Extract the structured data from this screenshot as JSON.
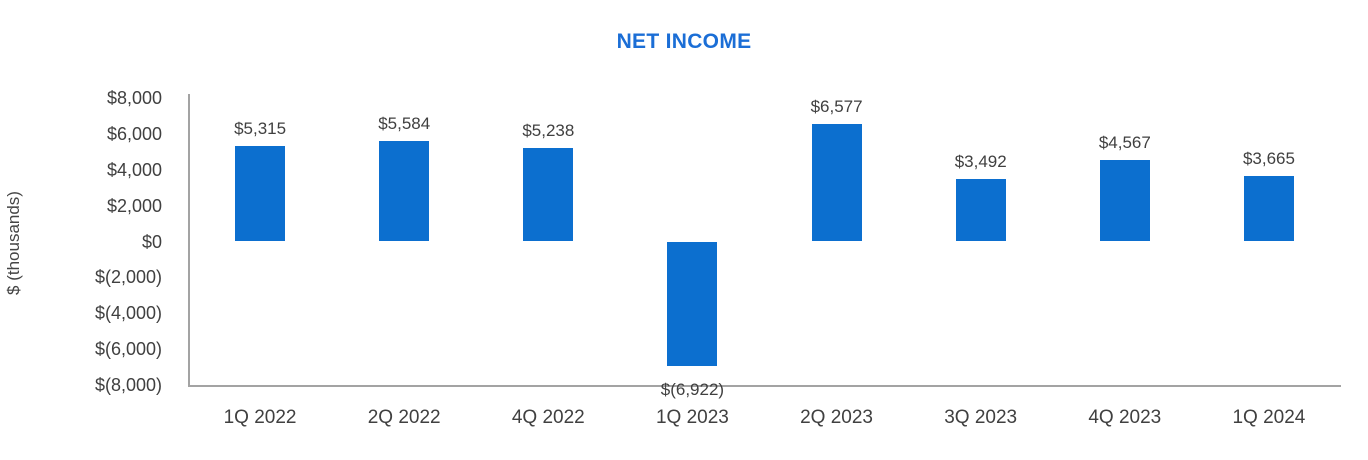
{
  "chart_data": {
    "type": "bar",
    "title": "NET INCOME",
    "title_color": "#1B6ED6",
    "ylabel": "$ (thousands)",
    "xlabel": "",
    "categories": [
      "1Q 2022",
      "2Q 2022",
      "4Q 2022",
      "1Q 2023",
      "2Q 2023",
      "3Q 2023",
      "4Q 2023",
      "1Q 2024"
    ],
    "values": [
      5315,
      5584,
      5238,
      -6922,
      6577,
      3492,
      4567,
      3665
    ],
    "value_labels": [
      "$5,315",
      "$5,584",
      "$5,238",
      "$(6,922)",
      "$6,577",
      "$3,492",
      "$4,567",
      "$3,665"
    ],
    "bar_color": "#0C6FCF",
    "ylim": [
      -8000,
      8000
    ],
    "ytick_values": [
      8000,
      6000,
      4000,
      2000,
      0,
      -2000,
      -4000,
      -6000,
      -8000
    ],
    "ytick_labels": [
      "$8,000",
      "$6,000",
      "$4,000",
      "$2,000",
      "$0",
      "$(2,000)",
      "$(4,000)",
      "$(6,000)",
      "$(8,000)"
    ],
    "grid": false,
    "legend": "none"
  }
}
